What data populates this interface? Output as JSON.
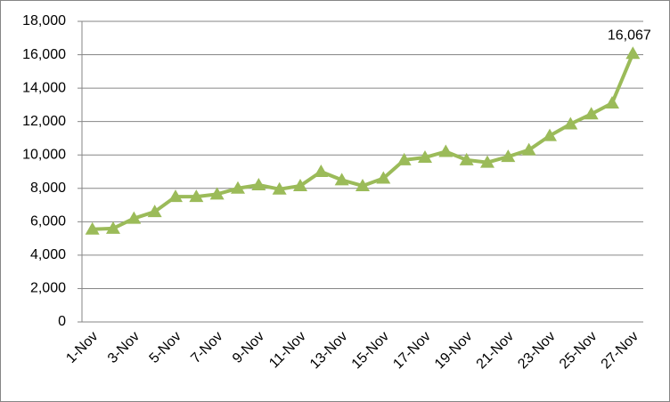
{
  "chart_data": {
    "type": "line",
    "categories": [
      "1-Nov",
      null,
      "3-Nov",
      null,
      "5-Nov",
      null,
      "7-Nov",
      null,
      "9-Nov",
      null,
      "11-Nov",
      null,
      "13-Nov",
      null,
      "15-Nov",
      null,
      "17-Nov",
      null,
      "19-Nov",
      null,
      "21-Nov",
      null,
      "23-Nov",
      null,
      "25-Nov",
      null,
      "27-Nov"
    ],
    "values": [
      5550,
      5600,
      6200,
      6600,
      7500,
      7500,
      7650,
      8000,
      8200,
      7950,
      8150,
      9000,
      8500,
      8150,
      8600,
      9700,
      9850,
      10200,
      9700,
      9550,
      9900,
      10300,
      11150,
      11850,
      12450,
      13100,
      16067
    ],
    "value_labels": [
      null,
      null,
      null,
      null,
      null,
      null,
      null,
      null,
      null,
      null,
      null,
      null,
      null,
      null,
      null,
      null,
      null,
      null,
      null,
      null,
      null,
      null,
      null,
      null,
      null,
      null,
      "16,067"
    ],
    "color": "#9bbb59",
    "ylim": [
      0,
      18000
    ],
    "yticks": [
      0,
      {
        "value": 2000,
        "label": "2,000"
      },
      {
        "value": 4000,
        "label": "4,000"
      },
      {
        "value": 6000,
        "label": "6,000"
      },
      {
        "value": 8000,
        "label": "8,000"
      },
      {
        "value": 10000,
        "label": "10,000"
      },
      {
        "value": 12000,
        "label": "12,000"
      },
      {
        "value": 14000,
        "label": "14,000"
      },
      {
        "value": 16000,
        "label": "16,000"
      },
      {
        "value": 18000,
        "label": "18,000"
      }
    ],
    "grid": true
  }
}
